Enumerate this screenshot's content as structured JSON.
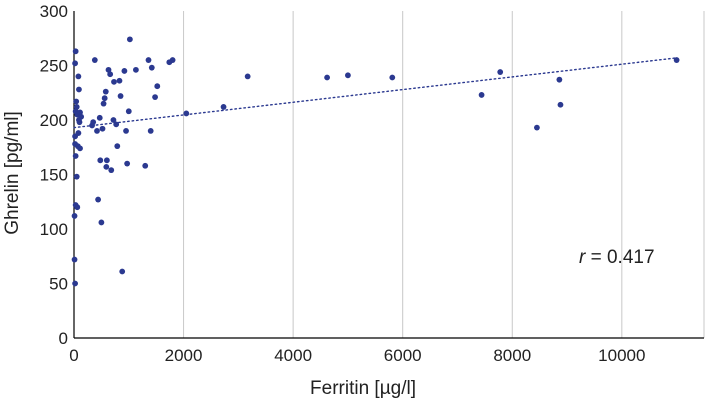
{
  "chart_data": {
    "type": "scatter",
    "title": "",
    "xlabel": "Ferritin [µg/l]",
    "ylabel": "Ghrelin [pg/ml]",
    "xlim": [
      0,
      11500
    ],
    "ylim": [
      0,
      300
    ],
    "xticks": [
      0,
      2000,
      4000,
      6000,
      8000,
      10000
    ],
    "yticks": [
      0,
      50,
      100,
      150,
      200,
      250,
      300
    ],
    "xtick_labels": [
      "0",
      "2000",
      "4000",
      "6000",
      "8000",
      "10000"
    ],
    "ytick_labels": [
      "0",
      "50",
      "100",
      "150",
      "200",
      "250",
      "300"
    ],
    "grid": "vertical",
    "marker_color": "#2b3990",
    "trendline": {
      "style": "dotted",
      "x": [
        0,
        11000
      ],
      "y": [
        193,
        257
      ]
    },
    "annotation": {
      "var": "r",
      "text": " = 0.417"
    },
    "points": [
      [
        20,
        252
      ],
      [
        30,
        263
      ],
      [
        40,
        217
      ],
      [
        50,
        212
      ],
      [
        30,
        208
      ],
      [
        60,
        205
      ],
      [
        80,
        240
      ],
      [
        90,
        228
      ],
      [
        90,
        200
      ],
      [
        110,
        207
      ],
      [
        130,
        203
      ],
      [
        100,
        198
      ],
      [
        80,
        188
      ],
      [
        20,
        185
      ],
      [
        20,
        178
      ],
      [
        70,
        176
      ],
      [
        110,
        174
      ],
      [
        30,
        167
      ],
      [
        50,
        148
      ],
      [
        30,
        122
      ],
      [
        60,
        120
      ],
      [
        10,
        112
      ],
      [
        10,
        72
      ],
      [
        20,
        50
      ],
      [
        330,
        195
      ],
      [
        350,
        198
      ],
      [
        380,
        255
      ],
      [
        420,
        190
      ],
      [
        470,
        202
      ],
      [
        480,
        163
      ],
      [
        440,
        127
      ],
      [
        500,
        106
      ],
      [
        520,
        192
      ],
      [
        540,
        215
      ],
      [
        560,
        220
      ],
      [
        580,
        226
      ],
      [
        600,
        163
      ],
      [
        590,
        157
      ],
      [
        630,
        246
      ],
      [
        660,
        242
      ],
      [
        680,
        154
      ],
      [
        720,
        200
      ],
      [
        730,
        235
      ],
      [
        770,
        196
      ],
      [
        790,
        176
      ],
      [
        830,
        236
      ],
      [
        850,
        222
      ],
      [
        880,
        61
      ],
      [
        920,
        245
      ],
      [
        950,
        190
      ],
      [
        970,
        160
      ],
      [
        1000,
        208
      ],
      [
        1020,
        274
      ],
      [
        1130,
        246
      ],
      [
        1300,
        158
      ],
      [
        1360,
        255
      ],
      [
        1400,
        190
      ],
      [
        1420,
        248
      ],
      [
        1480,
        221
      ],
      [
        1520,
        231
      ],
      [
        1740,
        253
      ],
      [
        1800,
        255
      ],
      [
        2050,
        206
      ],
      [
        2730,
        212
      ],
      [
        3170,
        240
      ],
      [
        4620,
        239
      ],
      [
        5000,
        241
      ],
      [
        5810,
        239
      ],
      [
        7440,
        223
      ],
      [
        7780,
        244
      ],
      [
        8450,
        193
      ],
      [
        8860,
        237
      ],
      [
        8880,
        214
      ],
      [
        11000,
        255
      ]
    ]
  }
}
